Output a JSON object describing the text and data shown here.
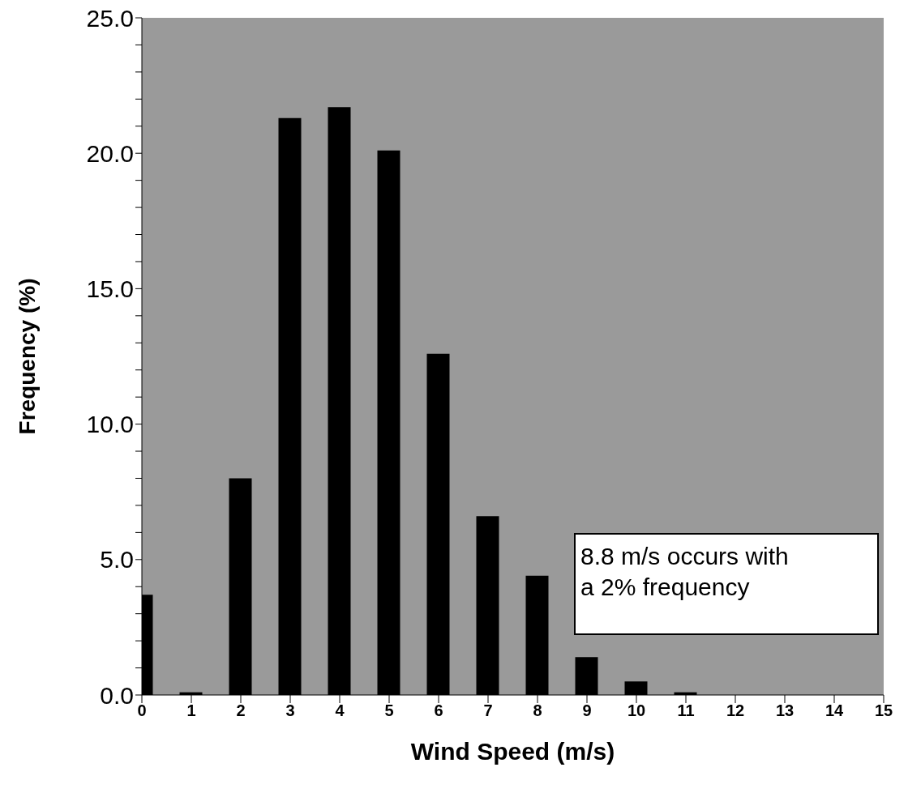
{
  "chart_data": {
    "type": "bar",
    "xlabel": "Wind Speed (m/s)",
    "ylabel": "Frequency (%)",
    "x": [
      0,
      1,
      2,
      3,
      4,
      5,
      6,
      7,
      8,
      9,
      10,
      11,
      12,
      13,
      14
    ],
    "values": [
      3.7,
      0.1,
      8.0,
      21.3,
      21.7,
      20.1,
      12.6,
      6.6,
      4.4,
      1.4,
      0.5,
      0.1,
      0,
      0,
      0
    ],
    "color": "#000000",
    "xlim": [
      0,
      15
    ],
    "xticks": [
      0,
      1,
      2,
      3,
      4,
      5,
      6,
      7,
      8,
      9,
      10,
      11,
      12,
      13,
      14,
      15
    ],
    "ylim": [
      0,
      25
    ],
    "yticks": [
      {
        "value": 0,
        "label": "0.0"
      },
      {
        "value": 1,
        "label": null
      },
      {
        "value": 2,
        "label": null
      },
      {
        "value": 3,
        "label": null
      },
      {
        "value": 4,
        "label": null
      },
      {
        "value": 5,
        "label": "5.0"
      },
      {
        "value": 6,
        "label": null
      },
      {
        "value": 7,
        "label": null
      },
      {
        "value": 8,
        "label": null
      },
      {
        "value": 9,
        "label": null
      },
      {
        "value": 10,
        "label": "10.0"
      },
      {
        "value": 11,
        "label": null
      },
      {
        "value": 12,
        "label": null
      },
      {
        "value": 13,
        "label": null
      },
      {
        "value": 14,
        "label": null
      },
      {
        "value": 15,
        "label": "15.0"
      },
      {
        "value": 16,
        "label": null
      },
      {
        "value": 17,
        "label": null
      },
      {
        "value": 18,
        "label": null
      },
      {
        "value": 19,
        "label": null
      },
      {
        "value": 20,
        "label": "20.0"
      },
      {
        "value": 21,
        "label": null
      },
      {
        "value": 22,
        "label": null
      },
      {
        "value": 23,
        "label": null
      },
      {
        "value": 24,
        "label": null
      },
      {
        "value": 25,
        "label": "25.0"
      }
    ],
    "annotations": [
      "8.8 m/s occurs with a 2% frequency"
    ]
  }
}
